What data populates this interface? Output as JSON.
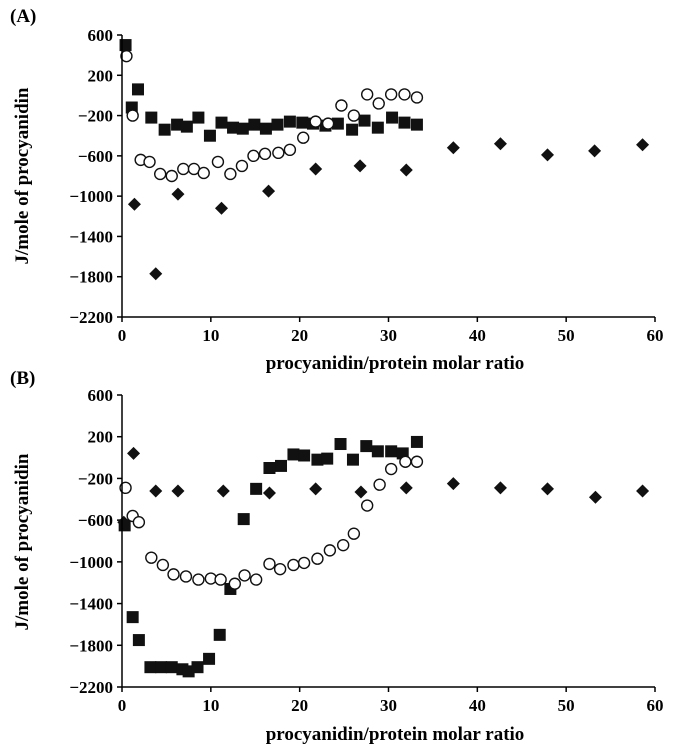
{
  "chart_data": [
    {
      "type": "scatter",
      "panel_label": "(A)",
      "xlabel": "procyanidin/protein molar ratio",
      "ylabel": "J/mole of procyanidin",
      "xlim": [
        0,
        60
      ],
      "ylim": [
        -2200,
        600
      ],
      "xticks": [
        0,
        10,
        20,
        30,
        40,
        50,
        60
      ],
      "yticks": [
        600,
        200,
        -200,
        -600,
        -1000,
        -1400,
        -1800,
        -2200
      ],
      "grid": false,
      "series": [
        {
          "marker": "square-filled",
          "points": [
            [
              0.4,
              500
            ],
            [
              1.1,
              -120
            ],
            [
              1.8,
              60
            ],
            [
              3.3,
              -220
            ],
            [
              4.8,
              -340
            ],
            [
              6.2,
              -290
            ],
            [
              7.3,
              -310
            ],
            [
              8.6,
              -220
            ],
            [
              9.9,
              -400
            ],
            [
              11.2,
              -270
            ],
            [
              12.5,
              -320
            ],
            [
              13.6,
              -330
            ],
            [
              14.9,
              -290
            ],
            [
              16.2,
              -330
            ],
            [
              17.5,
              -290
            ],
            [
              18.9,
              -260
            ],
            [
              20.3,
              -270
            ],
            [
              21.5,
              -280
            ],
            [
              22.9,
              -300
            ],
            [
              24.3,
              -280
            ],
            [
              25.9,
              -340
            ],
            [
              27.3,
              -250
            ],
            [
              28.8,
              -320
            ],
            [
              30.4,
              -220
            ],
            [
              31.8,
              -270
            ],
            [
              33.2,
              -290
            ]
          ]
        },
        {
          "marker": "circle-open",
          "points": [
            [
              0.5,
              390
            ],
            [
              1.2,
              -200
            ],
            [
              2.1,
              -640
            ],
            [
              3.1,
              -660
            ],
            [
              4.3,
              -780
            ],
            [
              5.6,
              -800
            ],
            [
              6.9,
              -730
            ],
            [
              8.1,
              -730
            ],
            [
              9.2,
              -770
            ],
            [
              10.8,
              -660
            ],
            [
              12.2,
              -780
            ],
            [
              13.5,
              -700
            ],
            [
              14.8,
              -600
            ],
            [
              16.1,
              -580
            ],
            [
              17.6,
              -570
            ],
            [
              18.9,
              -540
            ],
            [
              20.4,
              -420
            ],
            [
              21.8,
              -260
            ],
            [
              23.2,
              -280
            ],
            [
              24.7,
              -100
            ],
            [
              26.1,
              -200
            ],
            [
              27.6,
              10
            ],
            [
              28.9,
              -80
            ],
            [
              30.3,
              10
            ],
            [
              31.8,
              10
            ],
            [
              33.2,
              -20
            ]
          ]
        },
        {
          "marker": "diamond-filled",
          "points": [
            [
              1.4,
              -1080
            ],
            [
              3.8,
              -1770
            ],
            [
              6.3,
              -980
            ],
            [
              11.2,
              -1120
            ],
            [
              16.5,
              -950
            ],
            [
              21.8,
              -730
            ],
            [
              26.8,
              -700
            ],
            [
              32.0,
              -740
            ],
            [
              37.3,
              -520
            ],
            [
              42.6,
              -480
            ],
            [
              47.9,
              -590
            ],
            [
              53.2,
              -550
            ],
            [
              58.6,
              -490
            ]
          ]
        }
      ]
    },
    {
      "type": "scatter",
      "panel_label": "(B)",
      "xlabel": "procyanidin/protein molar ratio",
      "ylabel": "J/mole of procyanidin",
      "xlim": [
        0,
        60
      ],
      "ylim": [
        -2200,
        600
      ],
      "xticks": [
        0,
        10,
        20,
        30,
        40,
        50,
        60
      ],
      "yticks": [
        600,
        200,
        -200,
        -600,
        -1000,
        -1400,
        -1800,
        -2200
      ],
      "grid": false,
      "series": [
        {
          "marker": "square-filled",
          "points": [
            [
              0.3,
              -650
            ],
            [
              1.2,
              -1530
            ],
            [
              1.9,
              -1750
            ],
            [
              3.2,
              -2010
            ],
            [
              4.4,
              -2010
            ],
            [
              5.6,
              -2010
            ],
            [
              6.8,
              -2030
            ],
            [
              7.5,
              -2050
            ],
            [
              8.5,
              -2010
            ],
            [
              9.8,
              -1930
            ],
            [
              11.0,
              -1700
            ],
            [
              12.2,
              -1260
            ],
            [
              13.7,
              -590
            ],
            [
              15.1,
              -300
            ],
            [
              16.6,
              -100
            ],
            [
              17.9,
              -80
            ],
            [
              19.3,
              30
            ],
            [
              20.5,
              20
            ],
            [
              22.0,
              -20
            ],
            [
              23.1,
              -10
            ],
            [
              24.6,
              130
            ],
            [
              26.0,
              -20
            ],
            [
              27.5,
              110
            ],
            [
              28.8,
              60
            ],
            [
              30.3,
              60
            ],
            [
              31.6,
              40
            ],
            [
              33.2,
              150
            ]
          ]
        },
        {
          "marker": "circle-open",
          "points": [
            [
              0.4,
              -290
            ],
            [
              1.2,
              -560
            ],
            [
              1.9,
              -620
            ],
            [
              3.3,
              -960
            ],
            [
              4.6,
              -1030
            ],
            [
              5.8,
              -1120
            ],
            [
              7.2,
              -1140
            ],
            [
              8.6,
              -1170
            ],
            [
              10.0,
              -1160
            ],
            [
              11.1,
              -1170
            ],
            [
              12.7,
              -1210
            ],
            [
              13.8,
              -1130
            ],
            [
              15.1,
              -1170
            ],
            [
              16.6,
              -1020
            ],
            [
              17.8,
              -1070
            ],
            [
              19.3,
              -1030
            ],
            [
              20.5,
              -1010
            ],
            [
              22.0,
              -970
            ],
            [
              23.4,
              -890
            ],
            [
              24.9,
              -840
            ],
            [
              26.1,
              -730
            ],
            [
              27.6,
              -460
            ],
            [
              29.0,
              -260
            ],
            [
              30.3,
              -110
            ],
            [
              31.9,
              -40
            ],
            [
              33.2,
              -40
            ]
          ]
        },
        {
          "marker": "diamond-filled",
          "points": [
            [
              0.2,
              -620
            ],
            [
              1.3,
              40
            ],
            [
              3.8,
              -320
            ],
            [
              6.3,
              -320
            ],
            [
              11.4,
              -320
            ],
            [
              16.6,
              -340
            ],
            [
              21.8,
              -300
            ],
            [
              26.9,
              -330
            ],
            [
              32.0,
              -290
            ],
            [
              37.3,
              -250
            ],
            [
              42.6,
              -290
            ],
            [
              47.9,
              -300
            ],
            [
              53.3,
              -380
            ],
            [
              58.6,
              -320
            ]
          ]
        }
      ]
    }
  ]
}
